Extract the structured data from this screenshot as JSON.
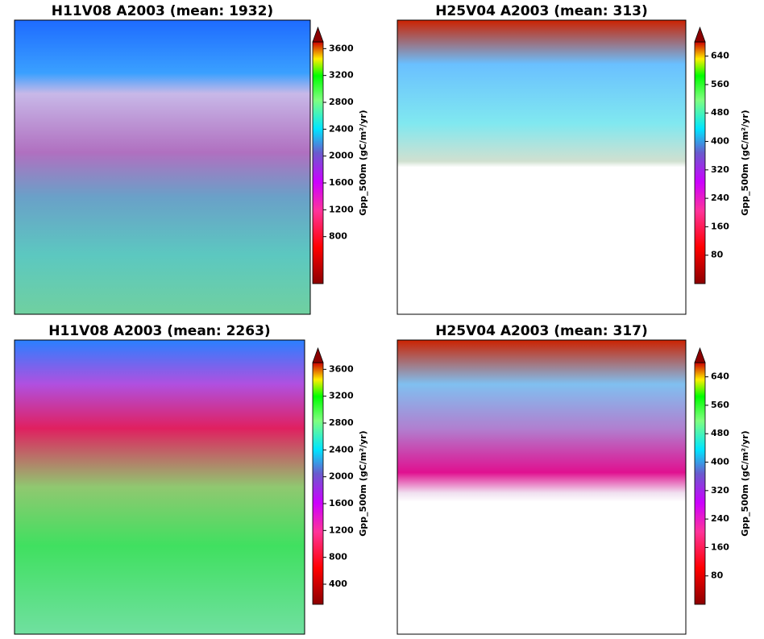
{
  "chart_data": [
    {
      "type": "image",
      "title": "H11V08 A2003 (mean: 1932)",
      "colorbar_label": "Gpp_500m (gC/m²/yr)",
      "clim": [
        100,
        3700
      ],
      "cticks": [
        800,
        1200,
        1600,
        2000,
        2400,
        2800,
        3200,
        3600
      ]
    },
    {
      "type": "image",
      "title": "H25V04 A2003 (mean: 313)",
      "colorbar_label": "Gpp_500m (gC/m²/yr)",
      "clim": [
        0,
        680
      ],
      "cticks": [
        80,
        160,
        240,
        320,
        400,
        480,
        560,
        640
      ]
    },
    {
      "type": "image",
      "title": "H11V08 A2003 (mean: 2263)",
      "colorbar_label": "Gpp_500m (gC/m²/yr)",
      "clim": [
        100,
        3700
      ],
      "cticks": [
        400,
        800,
        1200,
        1600,
        2000,
        2400,
        2800,
        3200,
        3600
      ]
    },
    {
      "type": "image",
      "title": "H25V04 A2003 (mean: 317)",
      "colorbar_label": "Gpp_500m (gC/m²/yr)",
      "clim": [
        0,
        680
      ],
      "cticks": [
        80,
        160,
        240,
        320,
        400,
        480,
        560,
        640
      ]
    }
  ]
}
